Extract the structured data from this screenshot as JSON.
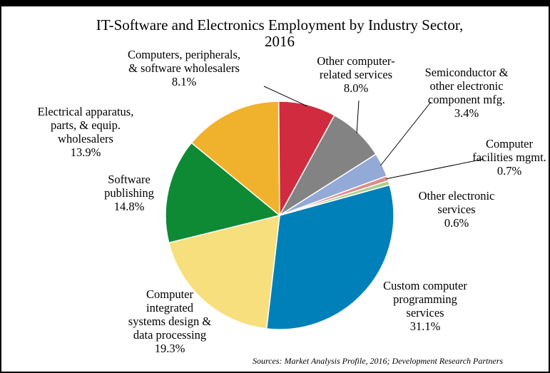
{
  "chart_data": {
    "type": "pie",
    "title": "IT-Software and Electronics Employment by Industry Sector, 2016",
    "title_lines": [
      "IT-Software and Electronics Employment by Industry Sector,",
      "2016"
    ],
    "source": "Sources: Market Analysis Profile, 2016; Development Research Partners",
    "slices": [
      {
        "label": "Custom computer programming services",
        "label_lines": [
          "Custom computer",
          "programming",
          "services"
        ],
        "value": 31.1,
        "display": "31.1%",
        "color": "#0080b8"
      },
      {
        "label": "Computer integrated systems design & data processing",
        "label_lines": [
          "Computer",
          "integrated",
          "systems design &",
          "data processing"
        ],
        "value": 19.3,
        "display": "19.3%",
        "color": "#f6df7c"
      },
      {
        "label": "Software publishing",
        "label_lines": [
          "Software",
          "publishing"
        ],
        "value": 14.8,
        "display": "14.8%",
        "color": "#0d8a33"
      },
      {
        "label": "Electrical apparatus, parts, & equip. wholesalers",
        "label_lines": [
          "Electrical apparatus,",
          "parts, & equip.",
          "wholesalers"
        ],
        "value": 13.9,
        "display": "13.9%",
        "color": "#f0b22c"
      },
      {
        "label": "Computers, peripherals, & software wholesalers",
        "label_lines": [
          "Computers, peripherals,",
          "& software wholesalers"
        ],
        "value": 8.1,
        "display": "8.1%",
        "color": "#d02b3f"
      },
      {
        "label": "Other computer-related services",
        "label_lines": [
          "Other computer-",
          "related services"
        ],
        "value": 8.0,
        "display": "8.0%",
        "color": "#838383"
      },
      {
        "label": "Semiconductor & other electronic component mfg.",
        "label_lines": [
          "Semiconductor &",
          "other electronic",
          "component mfg."
        ],
        "value": 3.4,
        "display": "3.4%",
        "color": "#93a9d6"
      },
      {
        "label": "Computer facilities mgmt.",
        "label_lines": [
          "Computer",
          "facilities mgmt."
        ],
        "value": 0.7,
        "display": "0.7%",
        "color": "#e08a8a"
      },
      {
        "label": "Other electronic services",
        "label_lines": [
          "Other electronic",
          "services"
        ],
        "value": 0.6,
        "display": "0.6%",
        "color": "#a9cf8e"
      }
    ]
  }
}
